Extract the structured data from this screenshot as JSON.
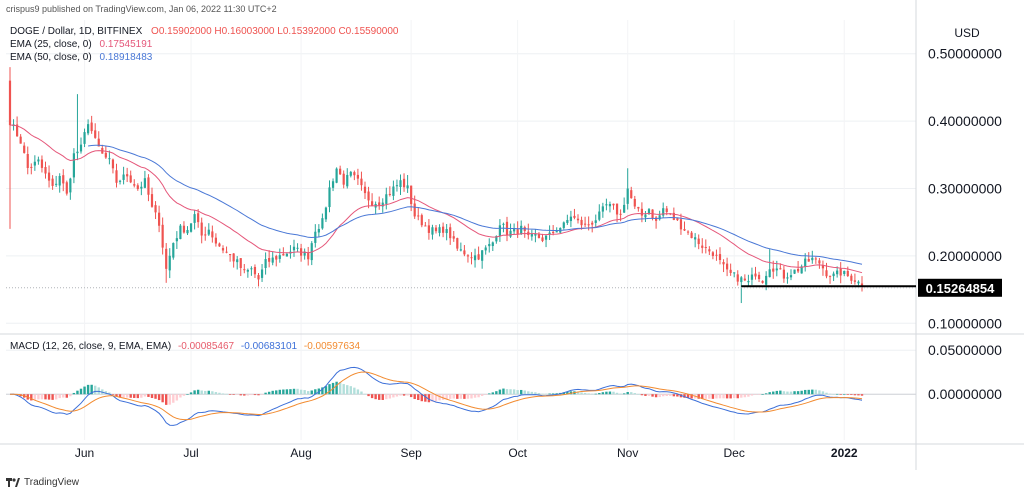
{
  "meta": {
    "published_by": "crispus9 published on TradingView.com, Jan 06, 2022 11:30 UTC+2",
    "footer_brand": "TradingView"
  },
  "colors": {
    "up": "#26a69a",
    "down": "#ef5350",
    "ema25": "#e5577a",
    "ema50": "#4a78d6",
    "macd": "#3c6fd8",
    "signal": "#f28b30",
    "hist_up_strong": "#26a69a",
    "hist_up_weak": "#b2dfdb",
    "hist_down_strong": "#ef5350",
    "hist_down_weak": "#ffcdd2"
  },
  "legend": {
    "symbol": "DOGE / Dollar, 1D, BITFINEX",
    "ohlc": "O0.15902000 H0.16003000 L0.15392000 C0.15590000",
    "ema25": "EMA (25, close, 0)",
    "ema25_value": "0.17545191",
    "ema50": "EMA (50, close, 0)",
    "ema50_value": "0.18918483",
    "macd": "MACD (12, 26, close, 9, EMA, EMA)",
    "macd_v1": "-0.00085467",
    "macd_v2": "-0.00683101",
    "macd_v3": "-0.00597634"
  },
  "chart_data": [
    {
      "type": "candlestick",
      "title": "DOGE / Dollar, 1D, BITFINEX",
      "currency": "USD",
      "ylim": [
        0.09,
        0.55
      ],
      "y_ticks": [
        "0.50000000",
        "0.40000000",
        "0.30000000",
        "0.20000000",
        "0.10000000"
      ],
      "y_tick_values": [
        0.5,
        0.4,
        0.3,
        0.2,
        0.1
      ],
      "last_price": 0.15264854,
      "last_price_label": "0.15264854",
      "x_labels": [
        "Jun",
        "Jul",
        "Aug",
        "Sep",
        "Oct",
        "Nov",
        "Dec",
        "2022"
      ],
      "x_label_day_index": [
        21,
        51,
        82,
        113,
        143,
        174,
        204,
        235
      ],
      "support_level": 0.155,
      "support_from_day": 206,
      "close_anchors": [
        [
          0,
          0.4
        ],
        [
          3,
          0.37
        ],
        [
          5,
          0.33
        ],
        [
          8,
          0.34
        ],
        [
          10,
          0.32
        ],
        [
          12,
          0.3
        ],
        [
          14,
          0.32
        ],
        [
          16,
          0.29
        ],
        [
          18,
          0.35
        ],
        [
          20,
          0.36
        ],
        [
          22,
          0.4
        ],
        [
          24,
          0.37
        ],
        [
          26,
          0.35
        ],
        [
          28,
          0.34
        ],
        [
          30,
          0.31
        ],
        [
          33,
          0.32
        ],
        [
          36,
          0.3
        ],
        [
          38,
          0.31
        ],
        [
          40,
          0.27
        ],
        [
          42,
          0.25
        ],
        [
          44,
          0.18
        ],
        [
          46,
          0.22
        ],
        [
          48,
          0.24
        ],
        [
          50,
          0.24
        ],
        [
          52,
          0.26
        ],
        [
          54,
          0.23
        ],
        [
          56,
          0.24
        ],
        [
          58,
          0.22
        ],
        [
          60,
          0.21
        ],
        [
          62,
          0.2
        ],
        [
          64,
          0.19
        ],
        [
          66,
          0.175
        ],
        [
          68,
          0.18
        ],
        [
          70,
          0.165
        ],
        [
          72,
          0.19
        ],
        [
          74,
          0.195
        ],
        [
          76,
          0.2
        ],
        [
          78,
          0.205
        ],
        [
          80,
          0.21
        ],
        [
          82,
          0.205
        ],
        [
          84,
          0.2
        ],
        [
          86,
          0.24
        ],
        [
          88,
          0.25
        ],
        [
          90,
          0.3
        ],
        [
          92,
          0.33
        ],
        [
          94,
          0.31
        ],
        [
          96,
          0.32
        ],
        [
          98,
          0.31
        ],
        [
          100,
          0.29
        ],
        [
          102,
          0.28
        ],
        [
          104,
          0.28
        ],
        [
          106,
          0.29
        ],
        [
          108,
          0.3
        ],
        [
          110,
          0.31
        ],
        [
          112,
          0.3
        ],
        [
          114,
          0.26
        ],
        [
          116,
          0.25
        ],
        [
          118,
          0.24
        ],
        [
          120,
          0.235
        ],
        [
          122,
          0.24
        ],
        [
          124,
          0.23
        ],
        [
          126,
          0.21
        ],
        [
          128,
          0.205
        ],
        [
          130,
          0.2
        ],
        [
          132,
          0.2
        ],
        [
          134,
          0.21
        ],
        [
          136,
          0.22
        ],
        [
          138,
          0.25
        ],
        [
          140,
          0.235
        ],
        [
          142,
          0.235
        ],
        [
          144,
          0.24
        ],
        [
          146,
          0.225
        ],
        [
          148,
          0.23
        ],
        [
          150,
          0.225
        ],
        [
          152,
          0.23
        ],
        [
          154,
          0.24
        ],
        [
          156,
          0.245
        ],
        [
          158,
          0.26
        ],
        [
          160,
          0.25
        ],
        [
          162,
          0.245
        ],
        [
          164,
          0.25
        ],
        [
          166,
          0.26
        ],
        [
          168,
          0.275
        ],
        [
          170,
          0.27
        ],
        [
          172,
          0.26
        ],
        [
          174,
          0.3
        ],
        [
          176,
          0.27
        ],
        [
          178,
          0.26
        ],
        [
          180,
          0.27
        ],
        [
          182,
          0.25
        ],
        [
          184,
          0.27
        ],
        [
          186,
          0.26
        ],
        [
          188,
          0.25
        ],
        [
          190,
          0.24
        ],
        [
          192,
          0.23
        ],
        [
          194,
          0.22
        ],
        [
          196,
          0.21
        ],
        [
          198,
          0.205
        ],
        [
          200,
          0.19
        ],
        [
          202,
          0.175
        ],
        [
          204,
          0.17
        ],
        [
          206,
          0.165
        ],
        [
          208,
          0.16
        ],
        [
          210,
          0.175
        ],
        [
          212,
          0.165
        ],
        [
          214,
          0.185
        ],
        [
          216,
          0.18
        ],
        [
          218,
          0.17
        ],
        [
          220,
          0.175
        ],
        [
          222,
          0.18
        ],
        [
          224,
          0.19
        ],
        [
          226,
          0.195
        ],
        [
          228,
          0.19
        ],
        [
          230,
          0.175
        ],
        [
          232,
          0.17
        ],
        [
          234,
          0.175
        ],
        [
          236,
          0.17
        ],
        [
          238,
          0.165
        ],
        [
          240,
          0.156
        ]
      ]
    },
    {
      "type": "macd",
      "title": "MACD (12, 26, close, 9, EMA, EMA)",
      "ylim": [
        -0.052,
        0.065
      ],
      "y_ticks": [
        "0.05000000",
        "0.00000000"
      ],
      "y_tick_values": [
        0.05,
        0.0
      ]
    }
  ]
}
